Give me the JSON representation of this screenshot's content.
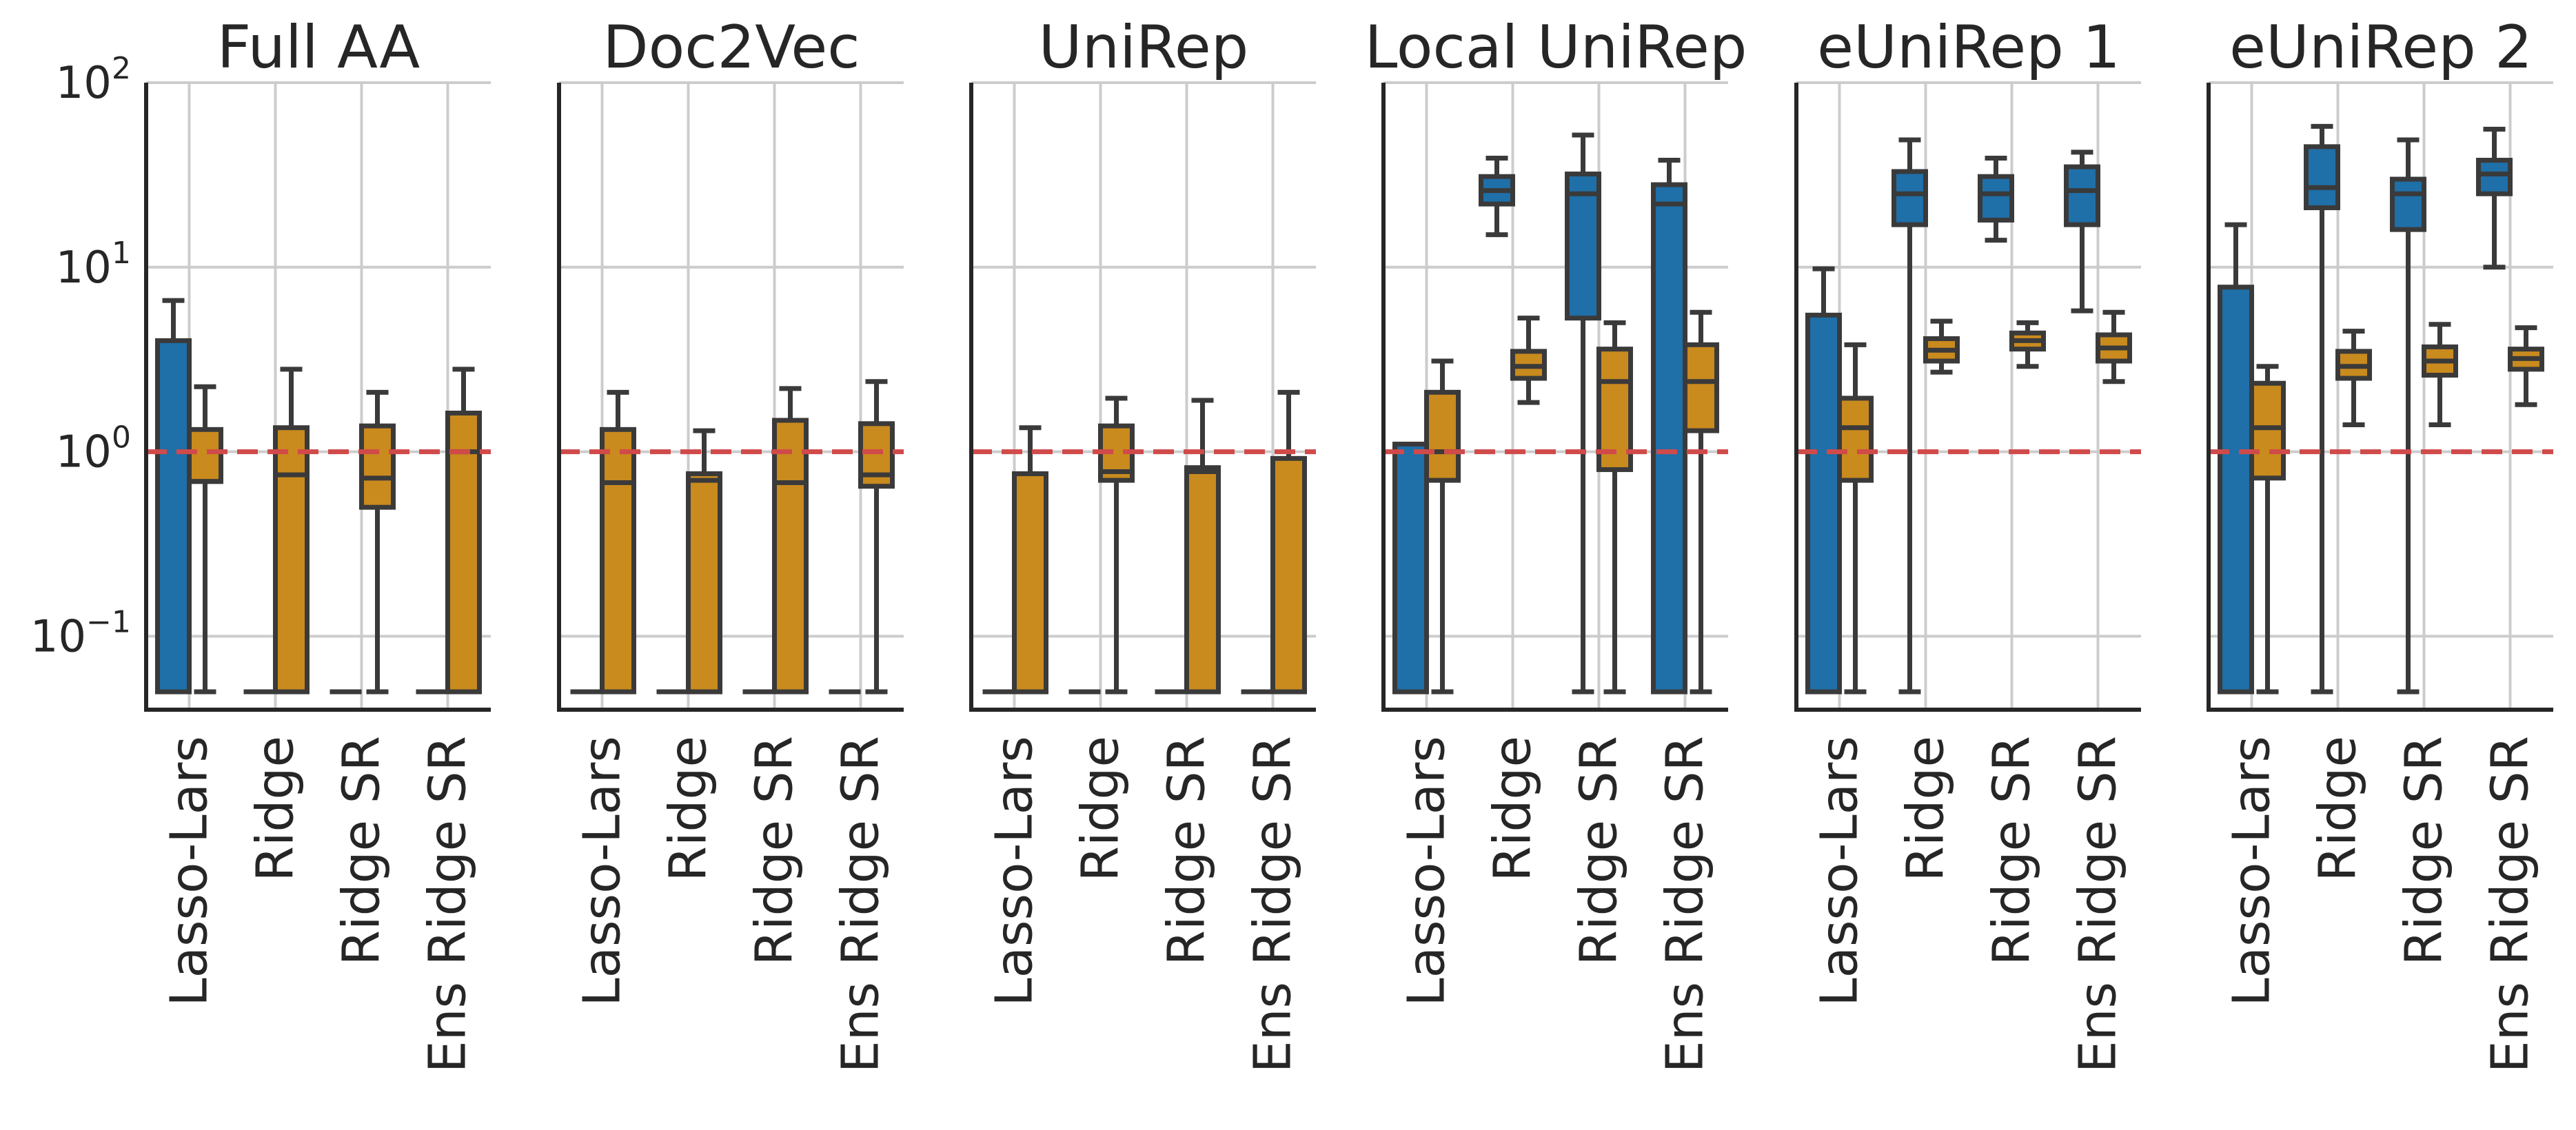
{
  "chart_data": {
    "type": "box",
    "yscale": "log",
    "ylim": [
      0.04,
      100
    ],
    "yticks": [
      {
        "value": 0.1,
        "base": "10",
        "exp": "−1"
      },
      {
        "value": 1,
        "base": "10",
        "exp": "0"
      },
      {
        "value": 10,
        "base": "10",
        "exp": "1"
      },
      {
        "value": 100,
        "base": "10",
        "exp": "2"
      }
    ],
    "reference_line": {
      "y": 1,
      "color": "#d14a4a",
      "style": "dashed"
    },
    "categories": [
      "Lasso-Lars",
      "Ridge",
      "Ridge SR",
      "Ens Ridge SR"
    ],
    "series_colors": [
      "#1f6fa8",
      "#c98a1e"
    ],
    "panels": [
      {
        "title": "Full AA",
        "groups": [
          [
            {
              "whislo": 0.05,
              "q1": 0.05,
              "med": 0.05,
              "q3": 4.0,
              "whishi": 6.6
            },
            {
              "whislo": 0.05,
              "q1": 0.69,
              "med": 0.69,
              "q3": 1.32,
              "whishi": 2.25
            }
          ],
          [
            {
              "whislo": 0.05,
              "q1": 0.05,
              "med": 0.05,
              "q3": 0.05,
              "whishi": 0.05
            },
            {
              "whislo": 0.05,
              "q1": 0.05,
              "med": 0.75,
              "q3": 1.35,
              "whishi": 2.8
            }
          ],
          [
            {
              "whislo": 0.05,
              "q1": 0.05,
              "med": 0.05,
              "q3": 0.05,
              "whishi": 0.05
            },
            {
              "whislo": 0.05,
              "q1": 0.5,
              "med": 0.72,
              "q3": 1.38,
              "whishi": 2.1
            }
          ],
          [
            {
              "whislo": 0.05,
              "q1": 0.05,
              "med": 0.05,
              "q3": 0.05,
              "whishi": 0.05
            },
            {
              "whislo": 0.05,
              "q1": 0.05,
              "med": 1.0,
              "q3": 1.62,
              "whishi": 2.8
            }
          ]
        ]
      },
      {
        "title": "Doc2Vec",
        "groups": [
          [
            {
              "whislo": 0.05,
              "q1": 0.05,
              "med": 0.05,
              "q3": 0.05,
              "whishi": 0.05
            },
            {
              "whislo": 0.05,
              "q1": 0.05,
              "med": 0.68,
              "q3": 1.32,
              "whishi": 2.1
            }
          ],
          [
            {
              "whislo": 0.05,
              "q1": 0.05,
              "med": 0.05,
              "q3": 0.05,
              "whishi": 0.05
            },
            {
              "whislo": 0.05,
              "q1": 0.05,
              "med": 0.7,
              "q3": 0.76,
              "whishi": 1.3
            }
          ],
          [
            {
              "whislo": 0.05,
              "q1": 0.05,
              "med": 0.05,
              "q3": 0.05,
              "whishi": 0.05
            },
            {
              "whislo": 0.05,
              "q1": 0.05,
              "med": 0.68,
              "q3": 1.48,
              "whishi": 2.2
            }
          ],
          [
            {
              "whislo": 0.05,
              "q1": 0.05,
              "med": 0.05,
              "q3": 0.05,
              "whishi": 0.05
            },
            {
              "whislo": 0.05,
              "q1": 0.65,
              "med": 0.75,
              "q3": 1.42,
              "whishi": 2.4
            }
          ]
        ]
      },
      {
        "title": "UniRep",
        "groups": [
          [
            {
              "whislo": 0.05,
              "q1": 0.05,
              "med": 0.05,
              "q3": 0.05,
              "whishi": 0.05
            },
            {
              "whislo": 0.05,
              "q1": 0.05,
              "med": 0.76,
              "q3": 0.76,
              "whishi": 1.35
            }
          ],
          [
            {
              "whislo": 0.05,
              "q1": 0.05,
              "med": 0.05,
              "q3": 0.05,
              "whishi": 0.05
            },
            {
              "whislo": 0.05,
              "q1": 0.7,
              "med": 0.78,
              "q3": 1.38,
              "whishi": 1.95
            }
          ],
          [
            {
              "whislo": 0.05,
              "q1": 0.05,
              "med": 0.05,
              "q3": 0.05,
              "whishi": 0.05
            },
            {
              "whislo": 0.05,
              "q1": 0.05,
              "med": 0.78,
              "q3": 0.82,
              "whishi": 1.9
            }
          ],
          [
            {
              "whislo": 0.05,
              "q1": 0.05,
              "med": 0.05,
              "q3": 0.05,
              "whishi": 0.05
            },
            {
              "whislo": 0.05,
              "q1": 0.05,
              "med": 0.92,
              "q3": 0.92,
              "whishi": 2.1
            }
          ]
        ]
      },
      {
        "title": "Local UniRep",
        "groups": [
          [
            {
              "whislo": 0.05,
              "q1": 0.05,
              "med": 0.05,
              "q3": 1.1,
              "whishi": 1.1
            },
            {
              "whislo": 0.05,
              "q1": 0.7,
              "med": 1.0,
              "q3": 2.1,
              "whishi": 3.1
            }
          ],
          [
            {
              "whislo": 15.0,
              "q1": 22.0,
              "med": 26.0,
              "q3": 31.0,
              "whishi": 39.0
            },
            {
              "whislo": 1.85,
              "q1": 2.5,
              "med": 2.9,
              "q3": 3.5,
              "whishi": 5.3
            }
          ],
          [
            {
              "whislo": 0.05,
              "q1": 5.3,
              "med": 25.0,
              "q3": 32.0,
              "whishi": 52.0
            },
            {
              "whislo": 0.05,
              "q1": 0.8,
              "med": 2.4,
              "q3": 3.6,
              "whishi": 5.0
            }
          ],
          [
            {
              "whislo": 0.05,
              "q1": 0.05,
              "med": 22.0,
              "q3": 28.0,
              "whishi": 38.0
            },
            {
              "whislo": 0.05,
              "q1": 1.3,
              "med": 2.4,
              "q3": 3.8,
              "whishi": 5.7
            }
          ]
        ]
      },
      {
        "title": "eUniRep 1",
        "groups": [
          [
            {
              "whislo": 0.05,
              "q1": 0.05,
              "med": 0.05,
              "q3": 5.5,
              "whishi": 9.8
            },
            {
              "whislo": 0.05,
              "q1": 0.7,
              "med": 1.35,
              "q3": 1.95,
              "whishi": 3.8
            }
          ],
          [
            {
              "whislo": 0.05,
              "q1": 17.0,
              "med": 25.0,
              "q3": 33.0,
              "whishi": 49.0
            },
            {
              "whislo": 2.7,
              "q1": 3.1,
              "med": 3.55,
              "q3": 4.1,
              "whishi": 5.1
            }
          ],
          [
            {
              "whislo": 14.0,
              "q1": 18.0,
              "med": 25.0,
              "q3": 31.0,
              "whishi": 39.0
            },
            {
              "whislo": 2.9,
              "q1": 3.6,
              "med": 4.0,
              "q3": 4.4,
              "whishi": 5.0
            }
          ],
          [
            {
              "whislo": 5.8,
              "q1": 17.0,
              "med": 26.0,
              "q3": 35.0,
              "whishi": 42.0
            },
            {
              "whislo": 2.4,
              "q1": 3.1,
              "med": 3.65,
              "q3": 4.3,
              "whishi": 5.7
            }
          ]
        ]
      },
      {
        "title": "eUniRep 2",
        "groups": [
          [
            {
              "whislo": 0.05,
              "q1": 0.05,
              "med": 0.05,
              "q3": 7.8,
              "whishi": 17.0
            },
            {
              "whislo": 0.05,
              "q1": 0.72,
              "med": 1.35,
              "q3": 2.35,
              "whishi": 2.9
            }
          ],
          [
            {
              "whislo": 0.05,
              "q1": 21.0,
              "med": 27.0,
              "q3": 45.0,
              "whishi": 58.0
            },
            {
              "whislo": 1.4,
              "q1": 2.5,
              "med": 2.9,
              "q3": 3.5,
              "whishi": 4.5
            }
          ],
          [
            {
              "whislo": 0.05,
              "q1": 16.0,
              "med": 25.0,
              "q3": 30.0,
              "whishi": 49.0
            },
            {
              "whislo": 1.4,
              "q1": 2.6,
              "med": 3.1,
              "q3": 3.7,
              "whishi": 4.9
            }
          ],
          [
            {
              "whislo": 10.0,
              "q1": 25.0,
              "med": 32.0,
              "q3": 38.0,
              "whishi": 56.0
            },
            {
              "whislo": 1.8,
              "q1": 2.8,
              "med": 3.2,
              "q3": 3.6,
              "whishi": 4.7
            }
          ]
        ]
      }
    ]
  }
}
